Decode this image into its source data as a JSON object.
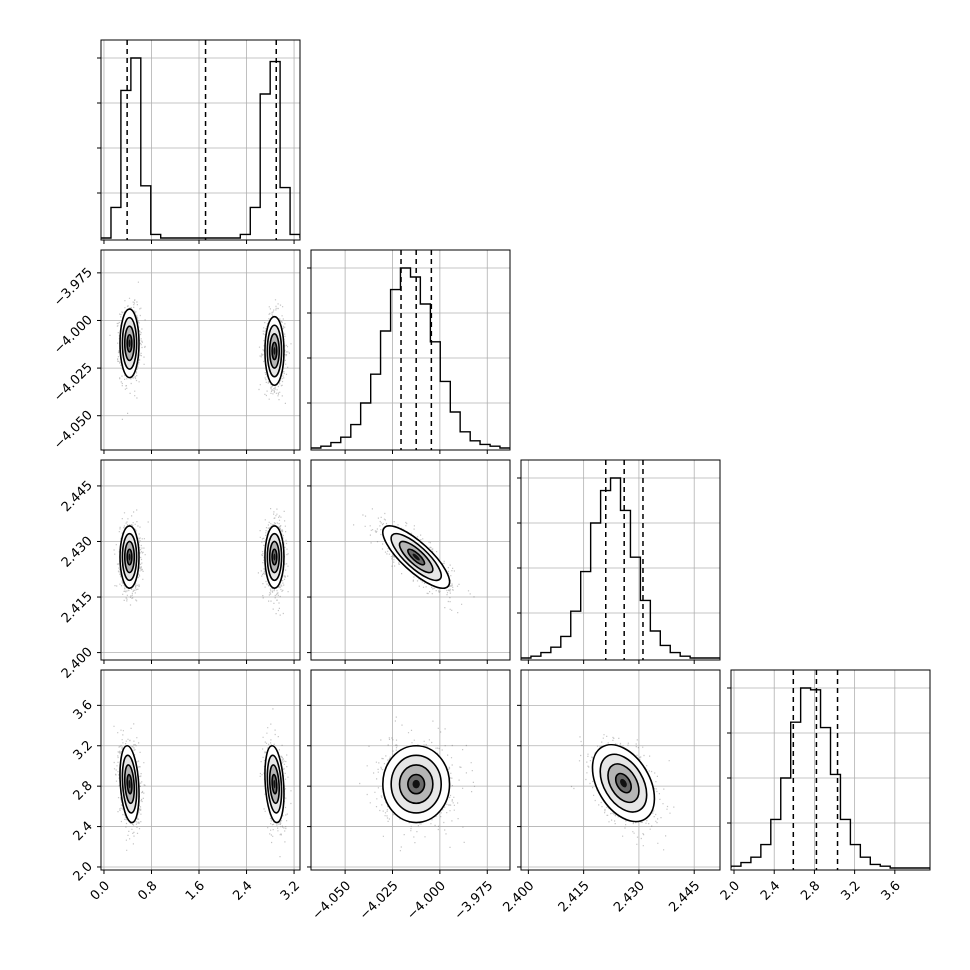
{
  "chart_data": {
    "type": "corner",
    "grid": true,
    "params": [
      "",
      "",
      "",
      ""
    ],
    "ranges": [
      [
        -0.05,
        3.3
      ],
      [
        -4.068,
        -3.963
      ],
      [
        2.398,
        2.452
      ],
      [
        1.97,
        3.95
      ]
    ],
    "ticks": [
      [
        0.0,
        0.8,
        1.6,
        2.4,
        3.2
      ],
      [
        -4.05,
        -4.025,
        -4.0,
        -3.975
      ],
      [
        2.4,
        2.415,
        2.43,
        2.445
      ],
      [
        2.0,
        2.4,
        2.8,
        3.2,
        3.6
      ]
    ],
    "tick_labels": [
      [
        "0.0",
        "0.8",
        "1.6",
        "2.4",
        "3.2"
      ],
      [
        "−4.050",
        "−4.025",
        "−4.000",
        "−3.975"
      ],
      [
        "2.400",
        "2.415",
        "2.430",
        "2.445"
      ],
      [
        "2.0",
        "2.4",
        "2.8",
        "3.2",
        "3.6"
      ]
    ],
    "quantiles": [
      [
        0.39,
        1.71,
        2.9
      ],
      [
        -4.0205,
        -4.0125,
        -4.0045
      ],
      [
        2.421,
        2.426,
        2.4311
      ],
      [
        2.59,
        2.82,
        3.03
      ]
    ],
    "histograms": [
      {
        "edges": [
          -0.05,
          0.118,
          0.285,
          0.453,
          0.62,
          0.788,
          0.955,
          1.123,
          1.29,
          1.458,
          1.625,
          1.793,
          1.96,
          2.128,
          2.295,
          2.463,
          2.63,
          2.798,
          2.965,
          3.133,
          3.3
        ],
        "counts": [
          0,
          0.17,
          0.82,
          1.0,
          0.29,
          0.02,
          0,
          0,
          0,
          0,
          0,
          0,
          0,
          0,
          0.02,
          0.17,
          0.8,
          0.98,
          0.28,
          0.02
        ]
      },
      {
        "edges": [
          -4.068,
          -4.0628,
          -4.0575,
          -4.0523,
          -4.047,
          -4.0418,
          -4.0365,
          -4.0313,
          -4.026,
          -4.0208,
          -4.0155,
          -4.0103,
          -4.005,
          -3.9998,
          -3.9945,
          -3.9893,
          -3.984,
          -3.9788,
          -3.9735,
          -3.9683,
          -3.963
        ],
        "counts": [
          0,
          0.01,
          0.03,
          0.06,
          0.13,
          0.25,
          0.41,
          0.65,
          0.88,
          1.0,
          0.95,
          0.8,
          0.59,
          0.37,
          0.2,
          0.09,
          0.04,
          0.02,
          0.01,
          0
        ]
      },
      {
        "edges": [
          2.398,
          2.4007,
          2.4034,
          2.4061,
          2.4088,
          2.4115,
          2.4142,
          2.4169,
          2.4196,
          2.4223,
          2.425,
          2.4277,
          2.4304,
          2.4331,
          2.4358,
          2.4385,
          2.4412,
          2.4439,
          2.4466,
          2.4493,
          2.452
        ],
        "counts": [
          0,
          0.01,
          0.03,
          0.06,
          0.12,
          0.26,
          0.48,
          0.75,
          0.93,
          1.0,
          0.82,
          0.56,
          0.32,
          0.15,
          0.07,
          0.03,
          0.01,
          0,
          0,
          0
        ]
      },
      {
        "edges": [
          1.97,
          2.069,
          2.168,
          2.267,
          2.366,
          2.465,
          2.564,
          2.663,
          2.762,
          2.861,
          2.96,
          3.059,
          3.158,
          3.257,
          3.356,
          3.455,
          3.554,
          3.653,
          3.752,
          3.851,
          3.95
        ],
        "counts": [
          0.01,
          0.03,
          0.06,
          0.13,
          0.27,
          0.5,
          0.81,
          1.0,
          0.99,
          0.78,
          0.52,
          0.27,
          0.13,
          0.06,
          0.02,
          0.01,
          0,
          0,
          0,
          0
        ]
      }
    ],
    "pairs": [
      {
        "row": 1,
        "col": 0,
        "modes": [
          {
            "mean": [
              0.43,
              -4.012
            ],
            "sd": [
              0.08,
              0.009
            ],
            "rho": 0.0
          },
          {
            "mean": [
              2.87,
              -4.016
            ],
            "sd": [
              0.08,
              0.009
            ],
            "rho": 0.0
          }
        ]
      },
      {
        "row": 2,
        "col": 0,
        "modes": [
          {
            "mean": [
              0.43,
              2.4258
            ],
            "sd": [
              0.08,
              0.0042
            ],
            "rho": 0.0
          },
          {
            "mean": [
              2.87,
              2.4258
            ],
            "sd": [
              0.08,
              0.0042
            ],
            "rho": 0.0
          }
        ]
      },
      {
        "row": 2,
        "col": 1,
        "modes": [
          {
            "mean": [
              -4.0125,
              2.4258
            ],
            "sd": [
              0.0088,
              0.0042
            ],
            "rho": -0.8
          }
        ]
      },
      {
        "row": 3,
        "col": 0,
        "modes": [
          {
            "mean": [
              0.43,
              2.82
            ],
            "sd": [
              0.08,
              0.19
            ],
            "rho": -0.25
          },
          {
            "mean": [
              2.87,
              2.82
            ],
            "sd": [
              0.08,
              0.19
            ],
            "rho": -0.25
          }
        ]
      },
      {
        "row": 3,
        "col": 1,
        "modes": [
          {
            "mean": [
              -4.0125,
              2.82
            ],
            "sd": [
              0.0088,
              0.19
            ],
            "rho": 0.0
          }
        ]
      },
      {
        "row": 3,
        "col": 2,
        "modes": [
          {
            "mean": [
              2.4258,
              2.83
            ],
            "sd": [
              0.0042,
              0.19
            ],
            "rho": -0.4
          }
        ]
      }
    ],
    "colors": {
      "line": "#000000",
      "grid": "#b0b0b0",
      "points": "#555555"
    }
  }
}
